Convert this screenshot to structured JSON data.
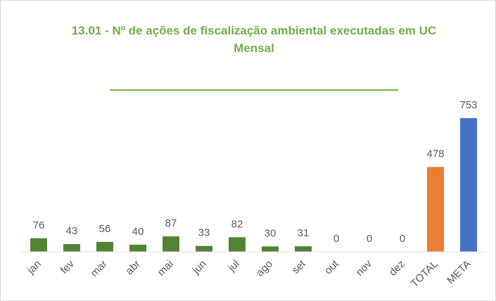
{
  "chart_data": {
    "type": "bar",
    "title": "13.01 - Nº de ações de fiscalização ambiental executadas em UC",
    "subtitle": "Mensal",
    "categories": [
      "jan",
      "fev",
      "mar",
      "abr",
      "mai",
      "jun",
      "jul",
      "ago",
      "set",
      "out",
      "nov",
      "dez",
      "TOTAL",
      "META"
    ],
    "values": [
      76,
      43,
      56,
      40,
      87,
      33,
      82,
      30,
      31,
      0,
      0,
      0,
      478,
      753
    ],
    "colors": [
      "#548235",
      "#548235",
      "#548235",
      "#548235",
      "#548235",
      "#548235",
      "#548235",
      "#548235",
      "#548235",
      "#548235",
      "#548235",
      "#548235",
      "#ed7d31",
      "#4472c4"
    ]
  }
}
